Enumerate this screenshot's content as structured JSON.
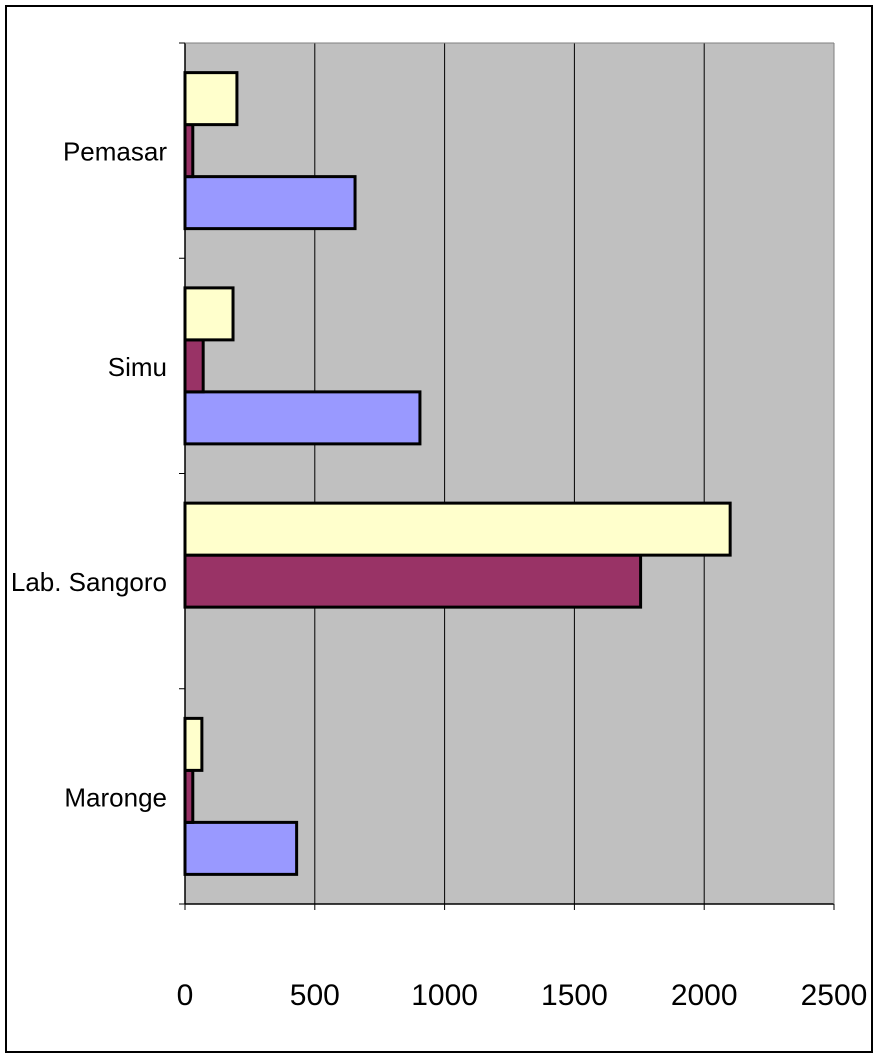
{
  "chart_data": {
    "type": "bar",
    "orientation": "horizontal",
    "title": "",
    "xlabel": "",
    "ylabel": "",
    "categories": [
      "Maronge",
      "Lab. Sangoro",
      "Simu",
      "Pemasar"
    ],
    "series": [
      {
        "values": [
          430,
          0,
          905,
          655
        ]
      },
      {
        "values": [
          30,
          1755,
          70,
          30
        ]
      },
      {
        "values": [
          65,
          2100,
          185,
          200
        ]
      }
    ],
    "xlim": [
      0,
      2500
    ],
    "xticks": [
      0,
      500,
      1000,
      1500,
      2000,
      2500
    ],
    "grid": "vertical",
    "legend": "none",
    "colors": {
      "plot_background": "#c0c0c0",
      "series": [
        "#9999ff",
        "#993366",
        "#ffffcc"
      ],
      "gridline": "#000000",
      "bar_stroke": "#000000"
    }
  }
}
